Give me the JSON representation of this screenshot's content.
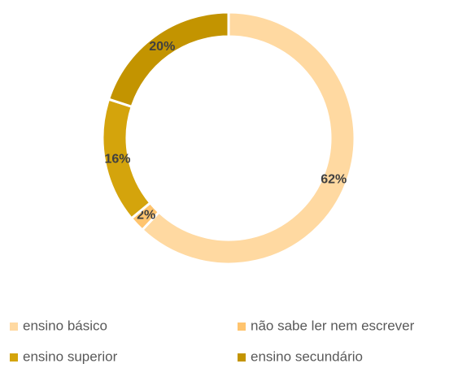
{
  "chart_data": {
    "type": "donut",
    "categories": [
      "ensino básico",
      "não sabe ler nem escrever",
      "ensino superior",
      "ensino secundário"
    ],
    "values": [
      62,
      2,
      16,
      20
    ],
    "value_labels": [
      "62%",
      "2%",
      "16%",
      "20%"
    ],
    "colors": [
      "#FFD9A1",
      "#FFC46E",
      "#D4A40C",
      "#C39400"
    ],
    "legend": "bottom"
  }
}
